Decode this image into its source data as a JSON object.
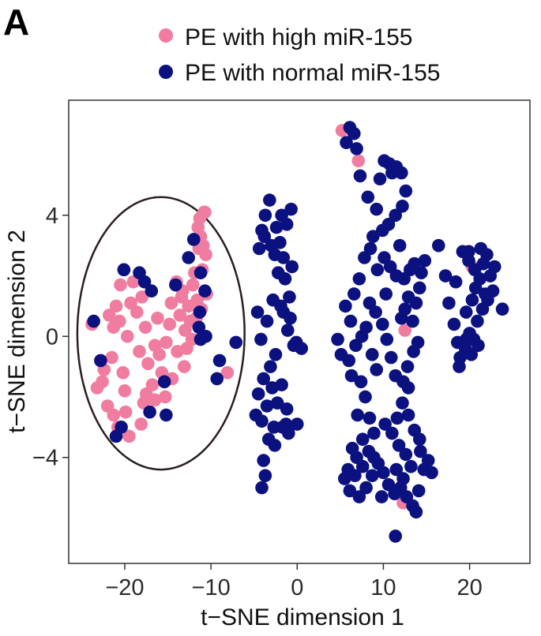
{
  "chart_data": {
    "type": "scatter",
    "panel_label": "A",
    "title": "",
    "xlabel": "t−SNE dimension 1",
    "ylabel": "t−SNE dimension 2",
    "xlim": [
      -26.5,
      27
    ],
    "ylim": [
      -7.5,
      7.8
    ],
    "x_ticks": [
      -20,
      -10,
      0,
      10,
      20
    ],
    "x_tick_labels": [
      "−20",
      "−10",
      "0",
      "10",
      "20"
    ],
    "y_ticks": [
      -4,
      0,
      4
    ],
    "y_tick_labels": [
      "−4",
      "0",
      "4"
    ],
    "grid": false,
    "legend_position": "top",
    "annotation": {
      "type": "ellipse",
      "center": [
        -15.8,
        0.1
      ],
      "radius_x": 9.7,
      "radius_y": 4.5,
      "color": "#2a1f1f"
    },
    "series": [
      {
        "name": "PE with high miR-155",
        "color": "#f07ca0",
        "points": [
          [
            -23.8,
            0.4
          ],
          [
            -23.2,
            -1.7
          ],
          [
            -22.6,
            -1.5
          ],
          [
            -21.5,
            -0.7
          ],
          [
            -21.3,
            0.3
          ],
          [
            -21.0,
            1.0
          ],
          [
            -20.6,
            0.5
          ],
          [
            -20.5,
            1.7
          ],
          [
            -20.1,
            2.2
          ],
          [
            -20.2,
            -1.2
          ],
          [
            -19.7,
            0.0
          ],
          [
            -19.3,
            1.1
          ],
          [
            -19.0,
            1.8
          ],
          [
            -18.6,
            0.8
          ],
          [
            -18.3,
            -0.5
          ],
          [
            -18.0,
            1.3
          ],
          [
            -17.6,
            0.3
          ],
          [
            -17.3,
            -0.9
          ],
          [
            -17.5,
            -1.9
          ],
          [
            -16.8,
            -1.6
          ],
          [
            -16.5,
            -0.3
          ],
          [
            -16.2,
            0.6
          ],
          [
            -16.0,
            -0.6
          ],
          [
            -15.7,
            -1.2
          ],
          [
            -15.3,
            -2.0
          ],
          [
            -15.2,
            -0.2
          ],
          [
            -14.5,
            -1.4
          ],
          [
            -14.8,
            0.4
          ],
          [
            -14.6,
            1.1
          ],
          [
            -13.9,
            -0.5
          ],
          [
            -13.6,
            0.7
          ],
          [
            -13.4,
            1.3
          ],
          [
            -13.0,
            0.2
          ],
          [
            -12.6,
            1.0
          ],
          [
            -12.2,
            -0.1
          ],
          [
            -12.1,
            1.7
          ],
          [
            -11.9,
            2.1
          ],
          [
            -11.4,
            2.9
          ],
          [
            -11.2,
            3.3
          ],
          [
            -10.9,
            3.0
          ],
          [
            -10.6,
            2.7
          ],
          [
            -11.3,
            3.9
          ],
          [
            -10.8,
            4.1
          ],
          [
            -11.0,
            2.2
          ],
          [
            -10.5,
            1.4
          ],
          [
            -11.6,
            1.2
          ],
          [
            -12.4,
            0.5
          ],
          [
            -13.1,
            -1.0
          ],
          [
            -8.1,
            -1.2
          ],
          [
            -18.1,
            -2.9
          ],
          [
            -19.5,
            -3.3
          ],
          [
            -20.8,
            -3.0
          ],
          [
            -21.3,
            -2.6
          ],
          [
            -22.0,
            -2.3
          ],
          [
            -22.4,
            -1.1
          ],
          [
            -21.8,
            0.7
          ],
          [
            -20.0,
            -1.8
          ],
          [
            -17.8,
            -2.2
          ],
          [
            -16.5,
            -2.1
          ],
          [
            -19.9,
            -2.5
          ],
          [
            -14.0,
            1.8
          ],
          [
            -13.3,
            1.5
          ],
          [
            -12.8,
            -0.4
          ],
          [
            -11.7,
            0.6
          ],
          [
            -11.1,
            0.9
          ],
          [
            -10.7,
            4.1
          ],
          [
            -11.5,
            3.6
          ],
          [
            5.2,
            6.8
          ],
          [
            7.1,
            5.8
          ],
          [
            12.5,
            0.2
          ],
          [
            12.3,
            -5.5
          ],
          [
            20.3,
            2.3
          ]
        ]
      },
      {
        "name": "PE with normal miR-155",
        "color": "#0c1180",
        "points": [
          [
            -23.6,
            0.5
          ],
          [
            -22.8,
            -0.8
          ],
          [
            -20.1,
            2.2
          ],
          [
            -18.3,
            2.1
          ],
          [
            -17.7,
            1.8
          ],
          [
            -16.9,
            1.5
          ],
          [
            -14.1,
            1.7
          ],
          [
            -12.6,
            2.6
          ],
          [
            -12.0,
            3.2
          ],
          [
            -11.2,
            2.1
          ],
          [
            -10.7,
            1.5
          ],
          [
            -11.4,
            0.3
          ],
          [
            -11.2,
            -0.1
          ],
          [
            -10.6,
            0.0
          ],
          [
            -11.3,
            0.8
          ],
          [
            -9.3,
            -1.4
          ],
          [
            -7.1,
            -0.2
          ],
          [
            -15.4,
            -1.5
          ],
          [
            -17.1,
            -2.5
          ],
          [
            -15.2,
            -2.6
          ],
          [
            -20.4,
            -3.0
          ],
          [
            -21.0,
            -3.3
          ],
          [
            -9.0,
            -0.8
          ],
          [
            -4.6,
            0.8
          ],
          [
            -4.4,
            2.9
          ],
          [
            -4.1,
            3.5
          ],
          [
            -3.7,
            4.0
          ],
          [
            -3.2,
            4.5
          ],
          [
            -2.4,
            3.6
          ],
          [
            -2.0,
            3.1
          ],
          [
            -1.6,
            2.6
          ],
          [
            -1.2,
            3.7
          ],
          [
            -1.8,
            4.0
          ],
          [
            -0.7,
            4.2
          ],
          [
            -0.6,
            2.3
          ],
          [
            -3.8,
            3.3
          ],
          [
            -3.0,
            3.0
          ],
          [
            -2.6,
            2.7
          ],
          [
            -2.2,
            2.1
          ],
          [
            -1.4,
            1.9
          ],
          [
            -0.9,
            1.3
          ],
          [
            -1.9,
            1.0
          ],
          [
            -2.8,
            1.2
          ],
          [
            -3.5,
            0.5
          ],
          [
            -4.2,
            -0.1
          ],
          [
            -1.6,
            0.8
          ],
          [
            -1.1,
            0.2
          ],
          [
            -0.4,
            -0.3
          ],
          [
            0.5,
            -0.4
          ],
          [
            -2.5,
            -0.6
          ],
          [
            -3.1,
            -1.0
          ],
          [
            -3.9,
            -1.4
          ],
          [
            -4.5,
            -1.9
          ],
          [
            -2.9,
            -1.7
          ],
          [
            -2.3,
            -2.2
          ],
          [
            -1.8,
            -1.6
          ],
          [
            -1.2,
            -2.4
          ],
          [
            -3.5,
            -2.3
          ],
          [
            -4.1,
            -2.8
          ],
          [
            -2.7,
            -3.0
          ],
          [
            -1.7,
            -3.0
          ],
          [
            -1.0,
            -3.2
          ],
          [
            -3.3,
            -3.4
          ],
          [
            -2.6,
            -3.6
          ],
          [
            -4.8,
            -2.6
          ],
          [
            -3.7,
            -4.6
          ],
          [
            -4.1,
            -5.0
          ],
          [
            -3.9,
            -4.1
          ],
          [
            -1.3,
            -2.9
          ],
          [
            0.0,
            -2.9
          ],
          [
            -0.8,
            0.6
          ],
          [
            -0.1,
            -0.2
          ],
          [
            4.7,
            -0.1
          ],
          [
            5.1,
            -0.6
          ],
          [
            5.7,
            6.4
          ],
          [
            6.1,
            6.9
          ],
          [
            6.6,
            6.7
          ],
          [
            6.9,
            6.2
          ],
          [
            7.3,
            5.3
          ],
          [
            8.2,
            4.6
          ],
          [
            9.2,
            4.2
          ],
          [
            9.6,
            5.2
          ],
          [
            10.1,
            5.8
          ],
          [
            10.7,
            5.7
          ],
          [
            11.0,
            5.4
          ],
          [
            11.5,
            5.6
          ],
          [
            12.1,
            5.4
          ],
          [
            12.6,
            4.8
          ],
          [
            12.2,
            4.3
          ],
          [
            11.4,
            4.0
          ],
          [
            10.6,
            3.7
          ],
          [
            9.9,
            3.5
          ],
          [
            8.8,
            3.3
          ],
          [
            8.5,
            2.9
          ],
          [
            7.8,
            2.6
          ],
          [
            9.3,
            2.2
          ],
          [
            10.1,
            2.6
          ],
          [
            10.8,
            2.3
          ],
          [
            11.5,
            2.0
          ],
          [
            12.4,
            1.9
          ],
          [
            13.1,
            2.2
          ],
          [
            13.6,
            2.4
          ],
          [
            14.4,
            2.1
          ],
          [
            14.8,
            2.5
          ],
          [
            14.2,
            1.6
          ],
          [
            13.8,
            1.1
          ],
          [
            12.9,
            1.3
          ],
          [
            12.5,
            0.9
          ],
          [
            12.1,
            0.6
          ],
          [
            13.4,
            0.5
          ],
          [
            14.0,
            -0.2
          ],
          [
            13.5,
            -0.5
          ],
          [
            12.8,
            -1.0
          ],
          [
            12.3,
            -1.5
          ],
          [
            11.4,
            -1.3
          ],
          [
            10.9,
            -0.7
          ],
          [
            10.4,
            -0.1
          ],
          [
            9.9,
            0.4
          ],
          [
            9.1,
            0.8
          ],
          [
            8.4,
            1.1
          ],
          [
            8.0,
            0.3
          ],
          [
            7.5,
            0.0
          ],
          [
            6.8,
            -0.3
          ],
          [
            6.2,
            0.5
          ],
          [
            6.0,
            -0.8
          ],
          [
            5.6,
            1.0
          ],
          [
            6.6,
            1.4
          ],
          [
            7.2,
            1.9
          ],
          [
            8.7,
            -0.6
          ],
          [
            9.2,
            -1.1
          ],
          [
            7.4,
            -1.5
          ],
          [
            7.9,
            -2.0
          ],
          [
            8.4,
            -2.7
          ],
          [
            8.9,
            -3.2
          ],
          [
            8.3,
            -3.8
          ],
          [
            7.6,
            -4.3
          ],
          [
            6.9,
            -4.0
          ],
          [
            6.4,
            -3.7
          ],
          [
            5.9,
            -4.4
          ],
          [
            5.5,
            -4.7
          ],
          [
            6.1,
            -5.1
          ],
          [
            7.2,
            -5.3
          ],
          [
            8.0,
            -5.0
          ],
          [
            8.7,
            -4.6
          ],
          [
            9.4,
            -4.2
          ],
          [
            10.0,
            -4.5
          ],
          [
            10.6,
            -4.9
          ],
          [
            11.3,
            -5.2
          ],
          [
            12.0,
            -5.0
          ],
          [
            12.7,
            -5.3
          ],
          [
            13.4,
            -5.6
          ],
          [
            14.1,
            -5.1
          ],
          [
            14.7,
            -4.4
          ],
          [
            15.2,
            -4.1
          ],
          [
            14.3,
            -3.8
          ],
          [
            13.6,
            -3.1
          ],
          [
            12.9,
            -2.6
          ],
          [
            12.2,
            -2.2
          ],
          [
            11.6,
            -2.7
          ],
          [
            11.0,
            -3.2
          ],
          [
            11.8,
            -3.6
          ],
          [
            12.6,
            -3.9
          ],
          [
            13.2,
            -4.3
          ],
          [
            12.3,
            -4.7
          ],
          [
            11.5,
            -4.4
          ],
          [
            14.2,
            -3.4
          ],
          [
            15.6,
            -4.5
          ],
          [
            13.8,
            -5.8
          ],
          [
            11.4,
            -6.6
          ],
          [
            10.2,
            -2.9
          ],
          [
            6.3,
            -1.3
          ],
          [
            7.0,
            -2.6
          ],
          [
            7.6,
            -3.4
          ],
          [
            6.7,
            -4.6
          ],
          [
            8.9,
            -4.0
          ],
          [
            9.8,
            -5.3
          ],
          [
            12.9,
            -1.7
          ],
          [
            10.3,
            1.4
          ],
          [
            11.9,
            3.0
          ],
          [
            16.4,
            3.0
          ],
          [
            17.2,
            2.0
          ],
          [
            17.6,
            1.1
          ],
          [
            18.2,
            0.4
          ],
          [
            18.6,
            -0.2
          ],
          [
            18.9,
            -0.7
          ],
          [
            19.5,
            -0.4
          ],
          [
            20.0,
            0.1
          ],
          [
            19.6,
            0.8
          ],
          [
            20.3,
            1.2
          ],
          [
            20.7,
            1.6
          ],
          [
            21.2,
            1.9
          ],
          [
            21.6,
            2.4
          ],
          [
            22.0,
            2.7
          ],
          [
            22.4,
            2.0
          ],
          [
            22.7,
            1.5
          ],
          [
            22.1,
            1.2
          ],
          [
            21.5,
            0.9
          ],
          [
            20.9,
            0.5
          ],
          [
            20.5,
            -0.1
          ],
          [
            21.0,
            -0.3
          ],
          [
            19.2,
            2.8
          ],
          [
            19.9,
            2.5
          ],
          [
            20.6,
            2.2
          ],
          [
            21.3,
            2.9
          ],
          [
            21.8,
            1.4
          ],
          [
            22.9,
            2.3
          ],
          [
            23.8,
            0.9
          ],
          [
            18.8,
            -1.0
          ],
          [
            20.2,
            -0.6
          ],
          [
            19.6,
            -0.1
          ],
          [
            18.4,
            1.8
          ],
          [
            19.9,
            2.8
          ]
        ]
      }
    ]
  }
}
